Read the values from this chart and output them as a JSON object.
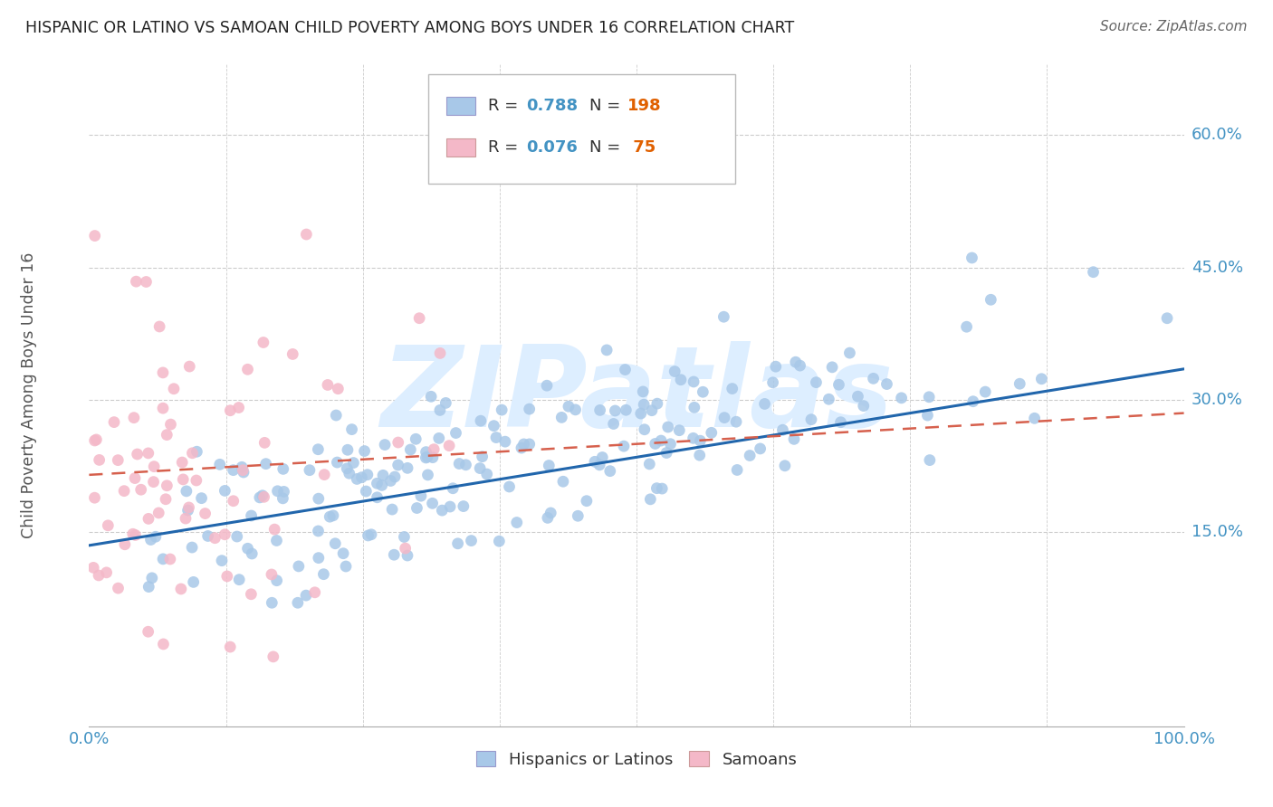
{
  "title": "HISPANIC OR LATINO VS SAMOAN CHILD POVERTY AMONG BOYS UNDER 16 CORRELATION CHART",
  "source": "Source: ZipAtlas.com",
  "ylabel_label": "Child Poverty Among Boys Under 16",
  "ytick_labels": [
    "15.0%",
    "30.0%",
    "45.0%",
    "60.0%"
  ],
  "ytick_values": [
    0.15,
    0.3,
    0.45,
    0.6
  ],
  "legend_labels": [
    "Hispanics or Latinos",
    "Samoans"
  ],
  "blue_color": "#a8c8e8",
  "pink_color": "#f4b8c8",
  "blue_line_color": "#2166ac",
  "pink_line_color": "#d6604d",
  "watermark_text": "ZIPatlas",
  "watermark_color": "#ddeeff",
  "title_color": "#222222",
  "axis_label_color": "#555555",
  "tick_color": "#4393c3",
  "background_color": "#ffffff",
  "grid_color": "#cccccc",
  "n_blue": 198,
  "n_pink": 75,
  "R_blue": 0.788,
  "R_pink": 0.076,
  "blue_line_start_y": 0.135,
  "blue_line_end_y": 0.335,
  "pink_line_start_y": 0.215,
  "pink_line_end_y": 0.285,
  "xlim": [
    0.0,
    1.0
  ],
  "ylim": [
    -0.07,
    0.68
  ],
  "legend_R1": "0.788",
  "legend_N1": "198",
  "legend_R2": "0.076",
  "legend_N2": " 75"
}
